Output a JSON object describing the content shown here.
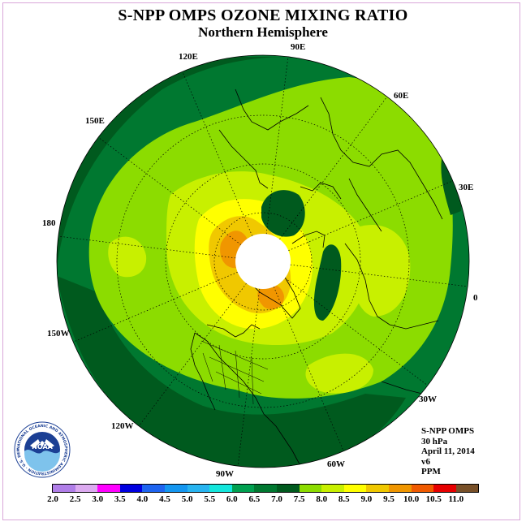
{
  "header": {
    "title": "S-NPP OMPS OZONE MIXING RATIO",
    "subtitle": "Northern Hemisphere"
  },
  "map": {
    "projection": "north-polar-stereographic",
    "center_latitude": 90,
    "longitude_labels": [
      "90E",
      "60E",
      "30E",
      "0",
      "30W",
      "60W",
      "90W",
      "120W",
      "150W",
      "180",
      "150E",
      "120E"
    ],
    "polar_data_gap": "white",
    "graticule": "dotted"
  },
  "info": {
    "instrument": "S-NPP OMPS",
    "level": "30 hPa",
    "date": "April 11, 2014",
    "version": "v6",
    "units": "PPM"
  },
  "logo": {
    "name": "noaa-logo",
    "text": "NOAA",
    "ring_text": "NATIONAL OCEANIC AND ATMOSPHERIC ADMINISTRATION · U.S. DEPARTMENT OF COMMERCE"
  },
  "colorbar": {
    "ticks": [
      "2.0",
      "2.5",
      "3.0",
      "3.5",
      "4.0",
      "4.5",
      "5.0",
      "5.5",
      "6.0",
      "6.5",
      "7.0",
      "7.5",
      "8.0",
      "8.5",
      "9.0",
      "9.5",
      "10.0",
      "10.5",
      "11.0"
    ],
    "colors": [
      "#b07ee8",
      "#dcaaf0",
      "#ff00ff",
      "#0000e0",
      "#1e64f0",
      "#1496f0",
      "#28b4f0",
      "#14e6dc",
      "#00a050",
      "#007830",
      "#005a1e",
      "#8cdc00",
      "#c8f000",
      "#ffff00",
      "#f0c800",
      "#f09600",
      "#f05a00",
      "#e60000",
      "#785028"
    ]
  }
}
